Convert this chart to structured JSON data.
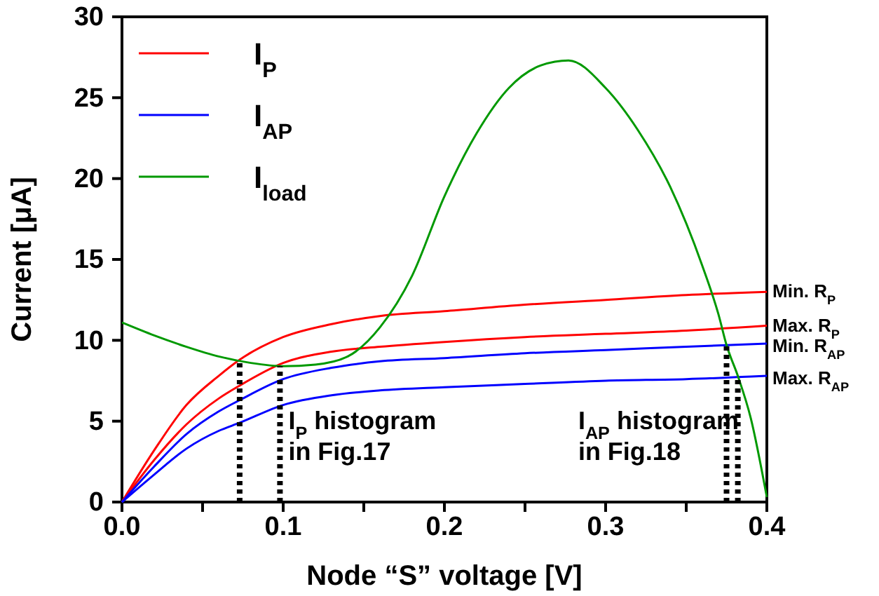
{
  "chart_data": {
    "type": "line",
    "xlabel": "Node “S” voltage [V]",
    "ylabel": "Current [μA]",
    "xlim": [
      0,
      0.4
    ],
    "ylim": [
      0,
      30
    ],
    "xticks": [
      {
        "value": 0,
        "label": "0.0"
      },
      {
        "value": 0.05,
        "label": null
      },
      0.1,
      {
        "value": 0.15,
        "label": null
      },
      0.2,
      {
        "value": 0.25,
        "label": null
      },
      0.3,
      {
        "value": 0.35,
        "label": null
      },
      0.4
    ],
    "yticks": [
      0,
      5,
      10,
      15,
      20,
      25,
      30
    ],
    "grid": false,
    "legend": "top left",
    "marker": "none",
    "line_style": "solid",
    "series": [
      {
        "name": "I$_{P}$",
        "color": "#ff0000",
        "x": [
          0,
          0.02,
          0.04,
          0.06,
          0.073,
          0.1,
          0.13,
          0.16,
          0.2,
          0.25,
          0.3,
          0.35,
          0.4
        ],
        "values": [
          0,
          3.2,
          6.0,
          7.8,
          8.8,
          10.2,
          11.0,
          11.5,
          11.8,
          12.2,
          12.5,
          12.8,
          13.0
        ]
      },
      {
        "color": "#ff0000",
        "x": [
          0,
          0.02,
          0.04,
          0.06,
          0.073,
          0.1,
          0.13,
          0.16,
          0.2,
          0.25,
          0.3,
          0.35,
          0.4
        ],
        "values": [
          0,
          2.6,
          4.8,
          6.4,
          7.2,
          8.6,
          9.3,
          9.6,
          9.9,
          10.2,
          10.4,
          10.6,
          10.9
        ]
      },
      {
        "name": "I$_{AP}$",
        "color": "#0000ff",
        "x": [
          0,
          0.02,
          0.04,
          0.06,
          0.073,
          0.1,
          0.13,
          0.16,
          0.2,
          0.25,
          0.3,
          0.35,
          0.4
        ],
        "values": [
          0,
          2.2,
          4.2,
          5.6,
          6.3,
          7.6,
          8.3,
          8.7,
          8.9,
          9.2,
          9.4,
          9.6,
          9.8
        ]
      },
      {
        "color": "#0000ff",
        "x": [
          0,
          0.02,
          0.04,
          0.06,
          0.073,
          0.1,
          0.13,
          0.16,
          0.2,
          0.25,
          0.3,
          0.35,
          0.4
        ],
        "values": [
          0,
          1.7,
          3.3,
          4.4,
          4.9,
          6.0,
          6.6,
          6.9,
          7.1,
          7.3,
          7.5,
          7.6,
          7.8
        ]
      },
      {
        "name": "I$_{load}$",
        "color": "#009900",
        "x": [
          0,
          0.02,
          0.04,
          0.06,
          0.08,
          0.1,
          0.12,
          0.14,
          0.16,
          0.18,
          0.2,
          0.22,
          0.24,
          0.26,
          0.277,
          0.3,
          0.32,
          0.34,
          0.36,
          0.37,
          0.375,
          0.382,
          0.39,
          0.4
        ],
        "values": [
          11.1,
          10.3,
          9.6,
          9.0,
          8.6,
          8.4,
          8.5,
          9.0,
          10.8,
          14.0,
          18.9,
          22.8,
          25.6,
          27.0,
          27.3,
          25.6,
          23.0,
          19.5,
          14.6,
          11.6,
          9.7,
          7.8,
          5.2,
          0.3
        ]
      },
      {
        "color": "#000000",
        "line_style": "dotted",
        "x": [
          0.073,
          0.073
        ],
        "values": [
          0,
          8.8
        ]
      },
      {
        "color": "#000000",
        "line_style": "dotted",
        "x": [
          0.098,
          0.098
        ],
        "values": [
          0,
          8.4
        ]
      },
      {
        "color": "#000000",
        "line_style": "dotted",
        "x": [
          0.375,
          0.375
        ],
        "values": [
          0,
          9.7
        ]
      },
      {
        "color": "#000000",
        "line_style": "dotted",
        "x": [
          0.382,
          0.382
        ],
        "values": [
          0,
          7.8
        ]
      }
    ],
    "annotations": [
      "I$_{P}$ histogram\nin Fig.17",
      "I$_{AP}$ histogram\nin Fig.18",
      "Min. R$_{P}$",
      "Max. R$_{P}$",
      "Min. R$_{AP}$",
      "Max. R$_{AP}$"
    ]
  }
}
